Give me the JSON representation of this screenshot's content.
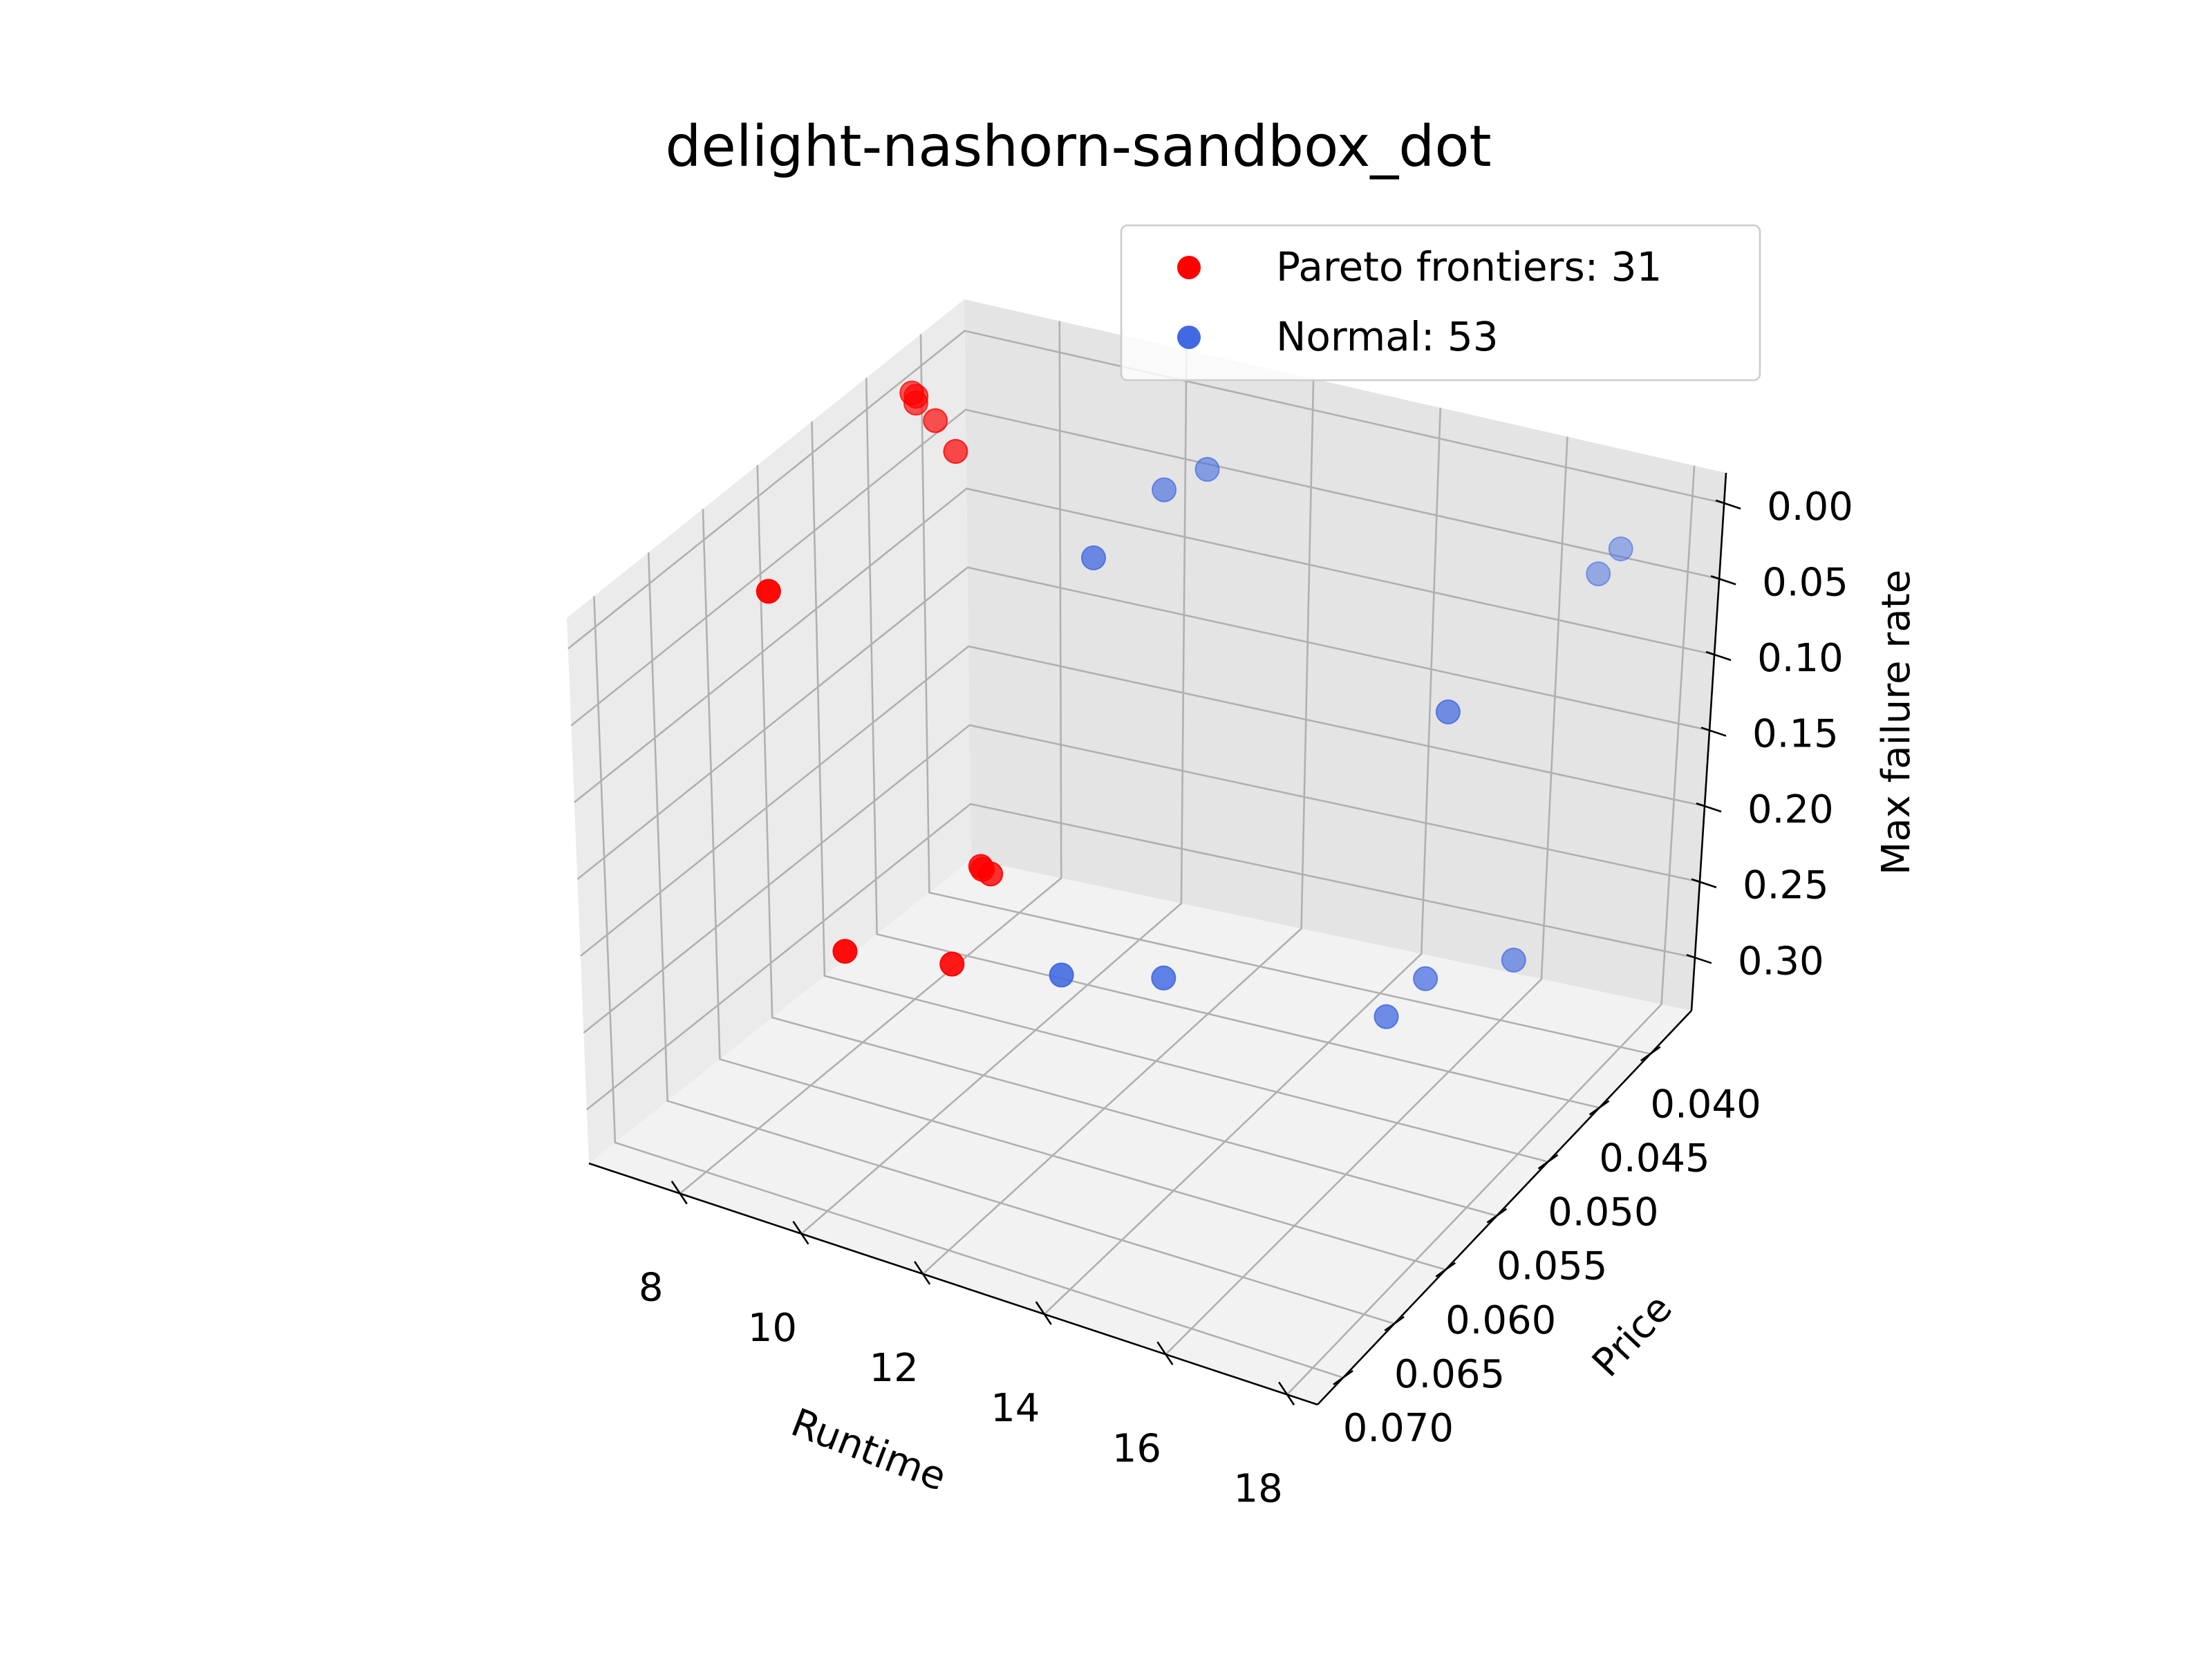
{
  "chart_data": {
    "type": "scatter",
    "title": "delight-nashorn-sandbox_dot",
    "xlabel": "Runtime",
    "ylabel": "Price",
    "zlabel": "Max failure rate",
    "xlim": [
      6.5,
      18.5
    ],
    "ylim": [
      0.036,
      0.0725
    ],
    "zlim": [
      0.335,
      -0.02
    ],
    "xticks": [
      "18",
      "16",
      "14",
      "12",
      "10",
      "8"
    ],
    "xtick_values": [
      18,
      16,
      14,
      12,
      10,
      8
    ],
    "yticks": [
      "0.040",
      "0.045",
      "0.050",
      "0.055",
      "0.060",
      "0.065",
      "0.070"
    ],
    "ytick_values": [
      0.04,
      0.045,
      0.05,
      0.055,
      0.06,
      0.065,
      0.07
    ],
    "zticks": [
      "0.00",
      "0.05",
      "0.10",
      "0.15",
      "0.20",
      "0.25",
      "0.30"
    ],
    "ztick_values": [
      0.0,
      0.05,
      0.1,
      0.15,
      0.2,
      0.25,
      0.3
    ],
    "legend_position": "top-right",
    "grid": true,
    "series": [
      {
        "name": "Pareto frontiers: 31",
        "color": "#ff0000",
        "points": [
          {
            "x": 7.0,
            "y": 0.0434,
            "z": 0.0
          },
          {
            "x": 6.8,
            "y": 0.0426,
            "z": 0.0
          },
          {
            "x": 6.9,
            "y": 0.0428,
            "z": 0.0
          },
          {
            "x": 7.5,
            "y": 0.0445,
            "z": 0.0
          },
          {
            "x": 8.2,
            "y": 0.0467,
            "z": 0.0
          },
          {
            "x": 8.0,
            "y": 0.0627,
            "z": 0.0
          },
          {
            "x": 10.22,
            "y": 0.0554,
            "z": 0.2
          },
          {
            "x": 10.05,
            "y": 0.0552,
            "z": 0.2
          },
          {
            "x": 9.99,
            "y": 0.055,
            "z": 0.2
          },
          {
            "x": 10.58,
            "y": 0.06115,
            "z": 0.22
          },
          {
            "x": 9.1,
            "y": 0.0627,
            "z": 0.22
          }
        ]
      },
      {
        "name": "Normal: 53",
        "color": "#4169e1",
        "points": [
          {
            "x": 11.54,
            "y": 0.04295,
            "z": 0.0
          },
          {
            "x": 11.4,
            "y": 0.0525,
            "z": 0.0
          },
          {
            "x": 11.3,
            "y": 0.0455,
            "z": 0.0
          },
          {
            "x": 17.8,
            "y": 0.0413,
            "z": 0.0
          },
          {
            "x": 17.85,
            "y": 0.0436,
            "z": 0.0
          },
          {
            "x": 17.8,
            "y": 0.0568,
            "z": 0.0
          },
          {
            "x": 13.8,
            "y": 0.0598,
            "z": 0.2
          },
          {
            "x": 17.1,
            "y": 0.0579,
            "z": 0.2
          },
          {
            "x": 18.0,
            "y": 0.0511,
            "z": 0.2
          },
          {
            "x": 17.3,
            "y": 0.0554,
            "z": 0.19
          },
          {
            "x": 12.5,
            "y": 0.0619,
            "z": 0.2
          }
        ]
      }
    ]
  }
}
